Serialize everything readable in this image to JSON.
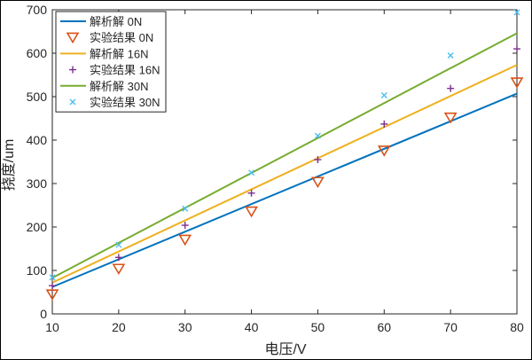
{
  "chart_data": {
    "type": "line",
    "title": "",
    "xlabel": "电压/V",
    "ylabel": "挠度/um",
    "xlim": [
      10,
      80
    ],
    "ylim": [
      0,
      700
    ],
    "xticks": [
      10,
      20,
      30,
      40,
      50,
      60,
      70,
      80
    ],
    "yticks": [
      0,
      100,
      200,
      300,
      400,
      500,
      600,
      700
    ],
    "grid": false,
    "legend_position": "top-left",
    "series": [
      {
        "name": "解析解 0N",
        "kind": "line",
        "color": "#0072BD",
        "x": [
          10,
          80
        ],
        "y": [
          62,
          507
        ]
      },
      {
        "name": "实验结果 0N",
        "kind": "marker",
        "marker": "triangle-down",
        "color": "#D95319",
        "x": [
          10,
          20,
          30,
          40,
          50,
          60,
          70,
          80
        ],
        "y": [
          45,
          104,
          171,
          236,
          304,
          376,
          452,
          533
        ]
      },
      {
        "name": "解析解 16N",
        "kind": "line",
        "color": "#EDB120",
        "x": [
          10,
          80
        ],
        "y": [
          72,
          573
        ]
      },
      {
        "name": "实验结果 16N",
        "kind": "marker",
        "marker": "plus",
        "color": "#7E2F8E",
        "x": [
          10,
          20,
          30,
          40,
          50,
          60,
          70,
          80
        ],
        "y": [
          65,
          130,
          204,
          278,
          355,
          437,
          519,
          610
        ]
      },
      {
        "name": "解析解 30N",
        "kind": "line",
        "color": "#77AC30",
        "x": [
          10,
          80
        ],
        "y": [
          83,
          646
        ]
      },
      {
        "name": "实验结果 30N",
        "kind": "marker",
        "marker": "x",
        "color": "#4DBEEE",
        "x": [
          10,
          20,
          30,
          40,
          50,
          60,
          70,
          80
        ],
        "y": [
          84,
          159,
          242,
          325,
          410,
          503,
          595,
          694
        ]
      }
    ]
  }
}
